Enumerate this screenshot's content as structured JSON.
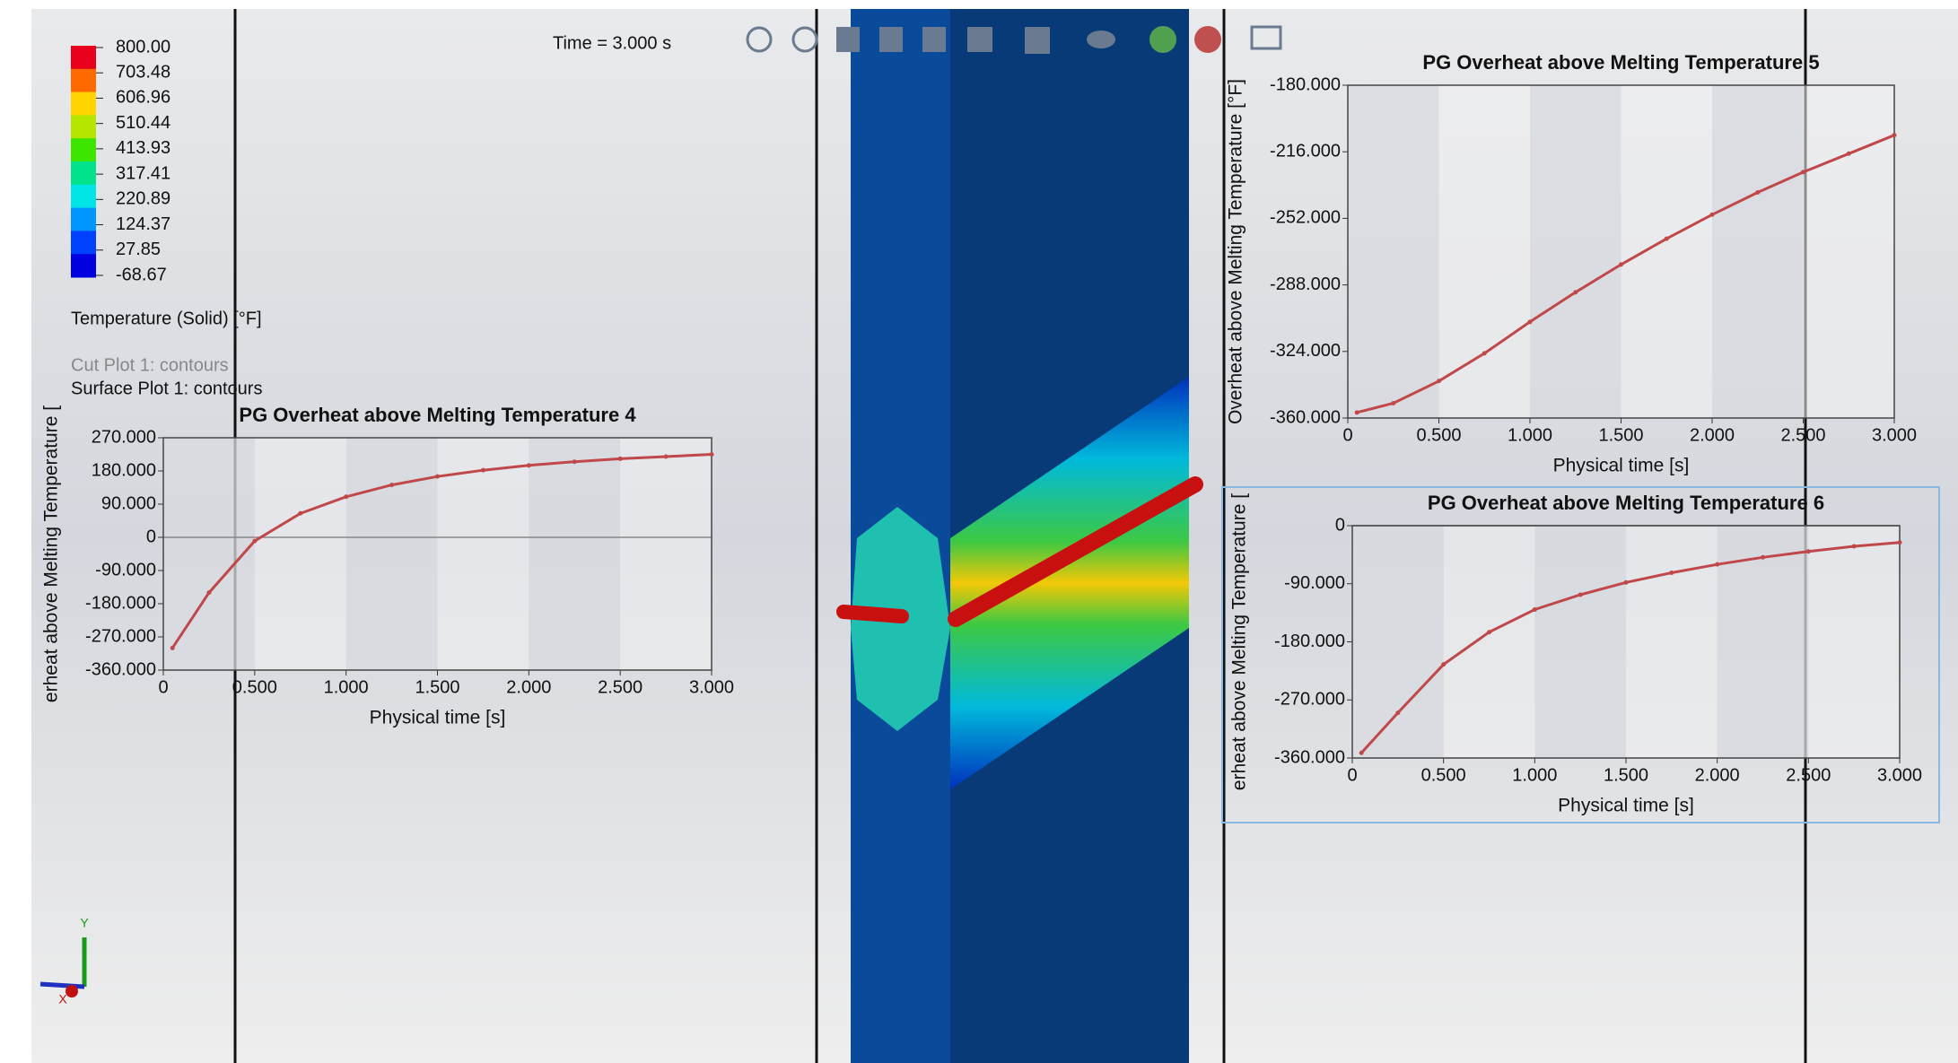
{
  "viewport": {
    "time_label": "Time = 3.000 s",
    "colorbar": {
      "title": "Temperature (Solid) [°F]",
      "ticks": [
        {
          "value": 800,
          "label": "800.00"
        },
        {
          "value": 703.48,
          "label": "703.48"
        },
        {
          "value": 606.96,
          "label": "606.96"
        },
        {
          "value": 510.44,
          "label": "510.44"
        },
        {
          "value": 413.93,
          "label": "413.93"
        },
        {
          "value": 317.41,
          "label": "317.41"
        },
        {
          "value": 220.89,
          "label": "220.89"
        },
        {
          "value": 124.37,
          "label": "124.37"
        },
        {
          "value": 27.85,
          "label": "27.85"
        },
        {
          "value": -68.67,
          "label": "-68.67"
        }
      ],
      "colors": [
        "#e8001c",
        "#ff6a00",
        "#ffd400",
        "#b5e600",
        "#3ce600",
        "#00e38c",
        "#00e6e6",
        "#0096ff",
        "#0040ff",
        "#0000e0"
      ]
    },
    "plot_labels": [
      "Cut Plot 1: contours",
      "Surface Plot 1: contours"
    ],
    "triad": {
      "y": "Y",
      "x": "X"
    }
  },
  "chart_data": [
    {
      "type": "line",
      "title": "PG Overheat above Melting Temperature 4",
      "x_label": "Physical time [s]",
      "y_label": "erheat above Melting Temperature [",
      "color": "#c0484a",
      "x": [
        0.05,
        0.25,
        0.5,
        0.75,
        1.0,
        1.25,
        1.5,
        1.75,
        2.0,
        2.25,
        2.5,
        2.75,
        3.0
      ],
      "values": [
        -300,
        -150,
        -10,
        65,
        110,
        142,
        165,
        182,
        195,
        205,
        213,
        219,
        225
      ],
      "xlim": [
        0,
        3
      ],
      "xticks": [
        0,
        {
          "value": 0.5,
          "label": "0.500"
        },
        {
          "value": 1,
          "label": "1.000"
        },
        {
          "value": 1.5,
          "label": "1.500"
        },
        {
          "value": 2,
          "label": "2.000"
        },
        {
          "value": 2.5,
          "label": "2.500"
        },
        {
          "value": 3,
          "label": "3.000"
        }
      ],
      "ylim": [
        -360,
        270
      ],
      "yticks": [
        {
          "value": 270,
          "label": "270.000"
        },
        {
          "value": 180,
          "label": "180.000"
        },
        {
          "value": 90,
          "label": "90.000"
        },
        0,
        {
          "value": -90,
          "label": "-90.000"
        },
        {
          "value": -180,
          "label": "-180.000"
        },
        {
          "value": -270,
          "label": "-270.000"
        },
        {
          "value": -360,
          "label": "-360.000"
        }
      ]
    },
    {
      "type": "line",
      "title": "PG Overheat above Melting Temperature 5",
      "x_label": "Physical time [s]",
      "y_label": "Overheat above Melting Temperature [°F]",
      "color": "#c0484a",
      "x": [
        0.05,
        0.25,
        0.5,
        0.75,
        1.0,
        1.25,
        1.5,
        1.75,
        2.0,
        2.25,
        2.5,
        2.75,
        3.0
      ],
      "values": [
        -357,
        -352,
        -340,
        -325,
        -308,
        -292,
        -277,
        -263,
        -250,
        -238,
        -227,
        -217,
        -207
      ],
      "xlim": [
        0,
        3
      ],
      "xticks": [
        0,
        {
          "value": 0.5,
          "label": "0.500"
        },
        {
          "value": 1,
          "label": "1.000"
        },
        {
          "value": 1.5,
          "label": "1.500"
        },
        {
          "value": 2,
          "label": "2.000"
        },
        {
          "value": 2.5,
          "label": "2.500"
        },
        {
          "value": 3,
          "label": "3.000"
        }
      ],
      "ylim": [
        -360,
        -180
      ],
      "yticks": [
        {
          "value": -180,
          "label": "-180.000"
        },
        {
          "value": -216,
          "label": "-216.000"
        },
        {
          "value": -252,
          "label": "-252.000"
        },
        {
          "value": -288,
          "label": "-288.000"
        },
        {
          "value": -324,
          "label": "-324.000"
        },
        {
          "value": -360,
          "label": "-360.000"
        }
      ]
    },
    {
      "type": "line",
      "title": "PG Overheat above Melting Temperature 6",
      "x_label": "Physical time [s]",
      "y_label": "erheat above Melting Temperature [",
      "color": "#c0484a",
      "x": [
        0.05,
        0.25,
        0.5,
        0.75,
        1.0,
        1.25,
        1.5,
        1.75,
        2.0,
        2.25,
        2.5,
        2.75,
        3.0
      ],
      "values": [
        -352,
        -290,
        -215,
        -165,
        -130,
        -107,
        -88,
        -73,
        -60,
        -49,
        -40,
        -32,
        -26
      ],
      "xlim": [
        0,
        3
      ],
      "xticks": [
        0,
        {
          "value": 0.5,
          "label": "0.500"
        },
        {
          "value": 1,
          "label": "1.000"
        },
        {
          "value": 1.5,
          "label": "1.500"
        },
        {
          "value": 2,
          "label": "2.000"
        },
        {
          "value": 2.5,
          "label": "2.500"
        },
        {
          "value": 3,
          "label": "3.000"
        }
      ],
      "ylim": [
        -360,
        0
      ],
      "yticks": [
        0,
        {
          "value": -90,
          "label": "-90.000"
        },
        {
          "value": -180,
          "label": "-180.000"
        },
        {
          "value": -270,
          "label": "-270.000"
        },
        {
          "value": -360,
          "label": "-360.000"
        }
      ]
    }
  ]
}
